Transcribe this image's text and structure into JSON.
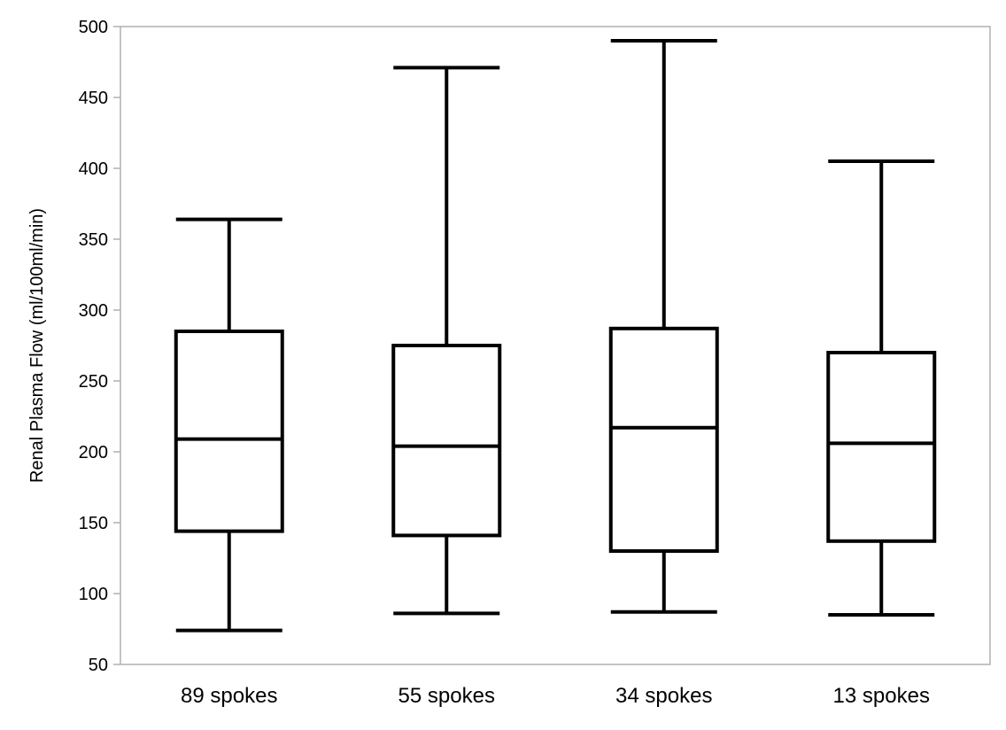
{
  "chart_data": {
    "type": "boxplot",
    "title": "",
    "xlabel": "",
    "ylabel": "Renal Plasma Flow (ml/100ml/min)",
    "ylim": [
      50,
      500
    ],
    "yticks": [
      50,
      100,
      150,
      200,
      250,
      300,
      350,
      400,
      450,
      500
    ],
    "grid": false,
    "categories": [
      "89 spokes",
      "55 spokes",
      "34 spokes",
      "13 spokes"
    ],
    "boxes": [
      {
        "category": "89 spokes",
        "min": 74,
        "q1": 144,
        "median": 209,
        "q3": 285,
        "max": 364
      },
      {
        "category": "55 spokes",
        "min": 86,
        "q1": 141,
        "median": 204,
        "q3": 275,
        "max": 471
      },
      {
        "category": "34 spokes",
        "min": 87,
        "q1": 130,
        "median": 217,
        "q3": 287,
        "max": 490
      },
      {
        "category": "13 spokes",
        "min": 85,
        "q1": 137,
        "median": 206,
        "q3": 270,
        "max": 405
      }
    ],
    "colors": {
      "stroke": "#000000",
      "frame": "#b0b0b0",
      "tick": "#b0b0b0",
      "background": "#ffffff"
    }
  }
}
